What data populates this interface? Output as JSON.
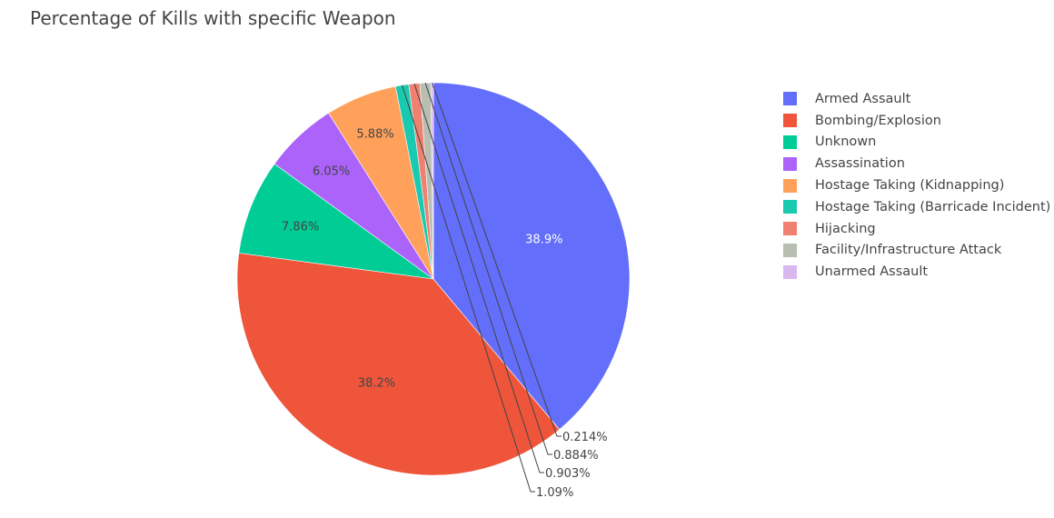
{
  "chart_data": {
    "type": "pie",
    "title": "Percentage of Kills with specific Weapon",
    "categories": [
      "Armed Assault",
      "Bombing/Explosion",
      "Unknown",
      "Assassination",
      "Hostage Taking (Kidnapping)",
      "Hostage Taking (Barricade Incident)",
      "Hijacking",
      "Facility/Infrastructure Attack",
      "Unarmed Assault"
    ],
    "values": [
      38.9,
      38.2,
      7.86,
      6.05,
      5.88,
      1.09,
      0.903,
      0.884,
      0.214
    ],
    "labels": [
      "38.9%",
      "38.2%",
      "7.86%",
      "6.05%",
      "5.88%",
      "1.09%",
      "0.903%",
      "0.884%",
      "0.214%"
    ],
    "colors": [
      "#636efa",
      "#EF553B",
      "#00cc96",
      "#ab63fa",
      "#FFA15A",
      "#19d3f3",
      "#FF6692",
      "#B6E880",
      "#FF97FF"
    ],
    "legend_position": "right",
    "sort": "descending",
    "direction": "clockwise",
    "start": "top"
  }
}
